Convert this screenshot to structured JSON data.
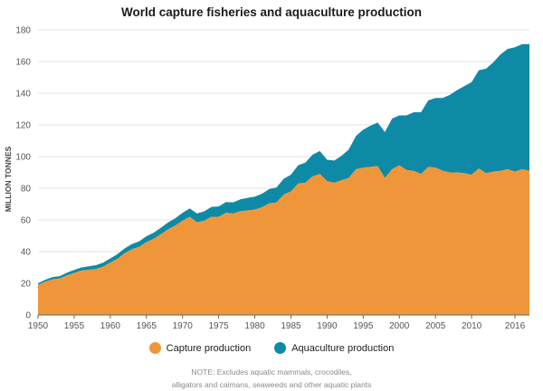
{
  "chart_data": {
    "type": "area",
    "stacked": true,
    "title": "World capture fisheries and aquaculture production",
    "ylabel": "MILLION TONNES",
    "xlabel": "",
    "ylim": [
      0,
      180
    ],
    "xlim": [
      1950,
      2018
    ],
    "yticks": [
      0,
      20,
      40,
      60,
      80,
      100,
      120,
      140,
      160,
      180
    ],
    "xticks": [
      "1950",
      "1955",
      "1960",
      "1965",
      "1970",
      "1975",
      "1980",
      "1985",
      "1990",
      "1995",
      "2000",
      "2005",
      "2010",
      "2016"
    ],
    "grid": true,
    "legend_position": "bottom",
    "years": [
      1950,
      1951,
      1952,
      1953,
      1954,
      1955,
      1956,
      1957,
      1958,
      1959,
      1960,
      1961,
      1962,
      1963,
      1964,
      1965,
      1966,
      1967,
      1968,
      1969,
      1970,
      1971,
      1972,
      1973,
      1974,
      1975,
      1976,
      1977,
      1978,
      1979,
      1980,
      1981,
      1982,
      1983,
      1984,
      1985,
      1986,
      1987,
      1988,
      1989,
      1990,
      1991,
      1992,
      1993,
      1994,
      1995,
      1996,
      1997,
      1998,
      1999,
      2000,
      2001,
      2002,
      2003,
      2004,
      2005,
      2006,
      2007,
      2008,
      2009,
      2010,
      2011,
      2012,
      2013,
      2014,
      2015,
      2016,
      2017,
      2018
    ],
    "series": [
      {
        "name": "Capture production",
        "color": "#f0963a",
        "values": [
          19,
          21,
          22.5,
          23,
          25,
          26.5,
          28,
          28.5,
          29,
          30.5,
          33,
          35.5,
          39,
          41.5,
          43,
          46,
          48,
          51,
          54,
          56.5,
          59.5,
          62,
          58.5,
          59.5,
          62,
          62,
          64.5,
          64,
          65.5,
          66,
          66.5,
          68,
          70.5,
          71,
          76,
          78,
          83,
          83.5,
          87.5,
          89,
          84.5,
          83.5,
          85,
          86.5,
          92,
          93,
          93.5,
          94,
          86.5,
          92,
          94.5,
          91.5,
          91,
          89,
          93.5,
          93,
          91,
          90,
          90,
          89.5,
          88.5,
          92.5,
          89.5,
          90.5,
          91,
          92,
          90.5,
          92,
          91
        ]
      },
      {
        "name": "Aquaculture production",
        "color": "#0f8aa6",
        "values": [
          1,
          1.2,
          1.4,
          1.5,
          1.7,
          1.9,
          2,
          2.2,
          2.4,
          2.5,
          2.7,
          2.9,
          3.1,
          3.3,
          3.5,
          3.7,
          3.9,
          4.1,
          4.4,
          4.6,
          5,
          5.3,
          5.6,
          5.9,
          6.2,
          6.5,
          6.8,
          7.1,
          7.5,
          7.9,
          8.2,
          8.6,
          9,
          9.5,
          10,
          10.6,
          11.5,
          12.7,
          13.7,
          14.5,
          13.5,
          14,
          15.5,
          18,
          21,
          24,
          26,
          27.5,
          29,
          32,
          31.5,
          34.5,
          37,
          39,
          42,
          44,
          46,
          49,
          52,
          55,
          58.5,
          62,
          66,
          69,
          73.5,
          76,
          78.5,
          79,
          80
        ]
      }
    ]
  },
  "legend": {
    "items": [
      {
        "label": "Capture production",
        "color": "#f0963a"
      },
      {
        "label": "Aquaculture production",
        "color": "#0f8aa6"
      }
    ]
  },
  "note": {
    "line1": "NOTE: Excludes aquatic mammals, crocodiles,",
    "line2": "alligators and caimans, seaweeds and other aquatic plants"
  }
}
